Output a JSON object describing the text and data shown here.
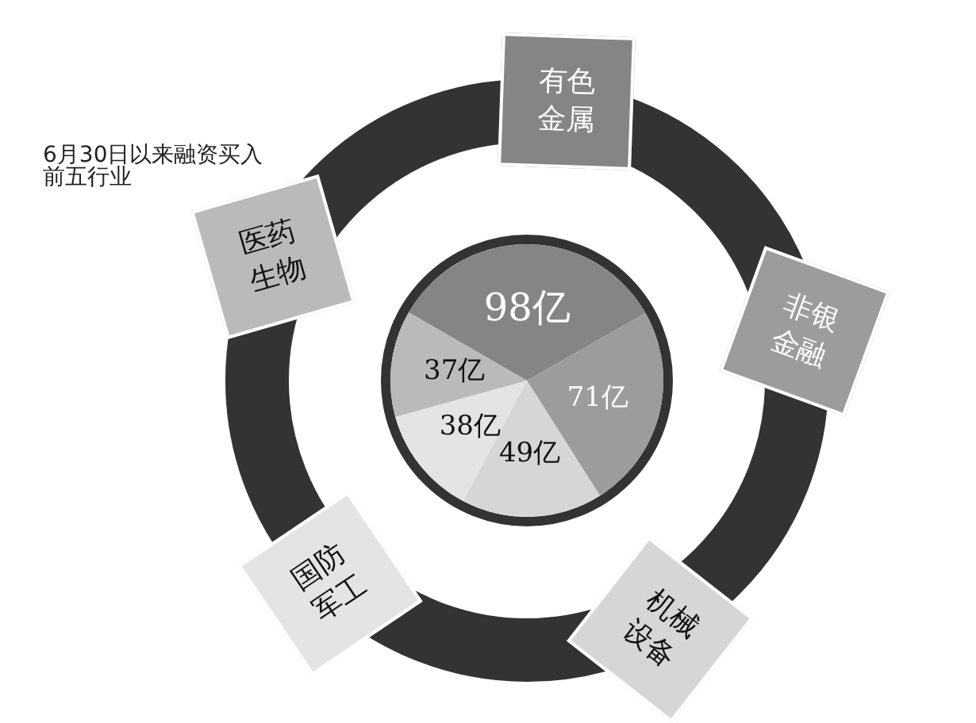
{
  "chart_data": {
    "type": "pie",
    "title": "6月30日以来融资买入前五行业",
    "categories": [
      "有色金属",
      "非银金融",
      "机械设备",
      "国防军工",
      "医药生物"
    ],
    "values": [
      98,
      71,
      49,
      38,
      37
    ],
    "value_labels": [
      "98亿",
      "71亿",
      "49亿",
      "38亿",
      "37亿"
    ],
    "colors": [
      "#858585",
      "#9c9c9c",
      "#d6d6d6",
      "#e4e4e4",
      "#bababa"
    ]
  }
}
